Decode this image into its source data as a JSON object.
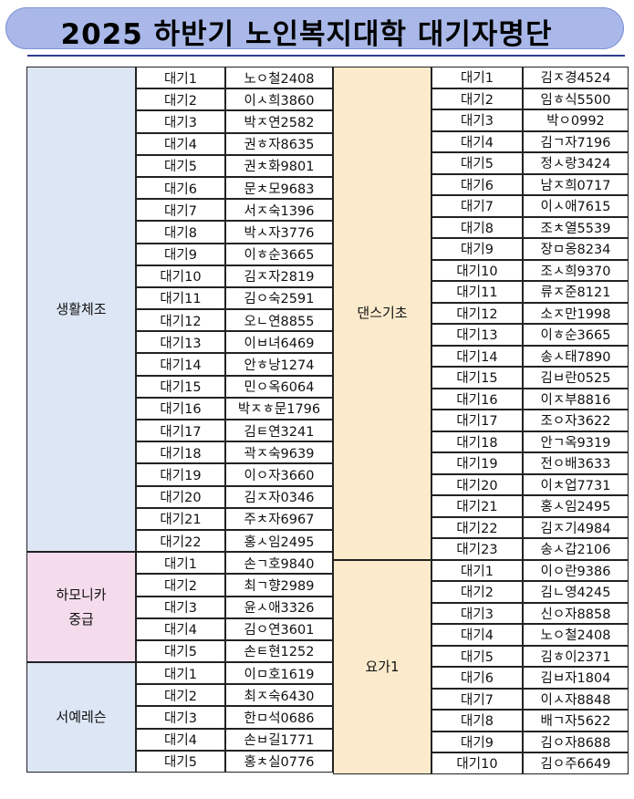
{
  "title": "2025 하반기 노인복지대학 대기자명단",
  "colors": {
    "title_bg": "#a9b8e8",
    "생활체조": "#dde6f5",
    "하모니카": "#f4dced",
    "서예레슨": "#dde6f5",
    "댄스기초": "#fbebcc",
    "요가1": "#fbebcc"
  },
  "left": [
    {
      "program": "생활체조",
      "color": "#dde6f5",
      "rows": [
        [
          "대기1",
          "노ㅇ철2408"
        ],
        [
          "대기2",
          "이ㅅ희3860"
        ],
        [
          "대기3",
          "박ㅈ연2582"
        ],
        [
          "대기4",
          "권ㅎ자8635"
        ],
        [
          "대기5",
          "권ㅊ화9801"
        ],
        [
          "대기6",
          "문ㅊ모9683"
        ],
        [
          "대기7",
          "서ㅈ숙1396"
        ],
        [
          "대기8",
          "박ㅅ자3776"
        ],
        [
          "대기9",
          "이ㅎ순3665"
        ],
        [
          "대기10",
          "김ㅈ자2819"
        ],
        [
          "대기11",
          "김ㅇ숙2591"
        ],
        [
          "대기12",
          "오ㄴ연8855"
        ],
        [
          "대기13",
          "이ㅂ녀6469"
        ],
        [
          "대기14",
          "안ㅎ낭1274"
        ],
        [
          "대기15",
          "민ㅇ옥6064"
        ],
        [
          "대기16",
          "박ㅈㅎ문1796"
        ],
        [
          "대기17",
          "김ㅌ연3241"
        ],
        [
          "대기18",
          "곽ㅈ숙9639"
        ],
        [
          "대기19",
          "이ㅇ자3660"
        ],
        [
          "대기20",
          "김ㅈ자0346"
        ],
        [
          "대기21",
          "주ㅊ자6967"
        ],
        [
          "대기22",
          "홍ㅅ임2495"
        ]
      ]
    },
    {
      "program": "하모니카\n중급",
      "color": "#f4dced",
      "rows": [
        [
          "대기1",
          "손ㄱ호9840"
        ],
        [
          "대기2",
          "최ㄱ향2989"
        ],
        [
          "대기3",
          "윤ㅅ애3326"
        ],
        [
          "대기4",
          "김ㅇ연3601"
        ],
        [
          "대기5",
          "손ㅌ현1252"
        ]
      ]
    },
    {
      "program": "서예레슨",
      "color": "#dde6f5",
      "rows": [
        [
          "대기1",
          "이ㅁ호1619"
        ],
        [
          "대기2",
          "최ㅈ숙6430"
        ],
        [
          "대기3",
          "한ㅁ석0686"
        ],
        [
          "대기4",
          "손ㅂ길1771"
        ],
        [
          "대기5",
          "홍ㅊ실0776"
        ]
      ]
    }
  ],
  "right": [
    {
      "program": "댄스기초",
      "color": "#fbebcc",
      "rows": [
        [
          "대기1",
          "김ㅈ경4524"
        ],
        [
          "대기2",
          "임ㅎ식5500"
        ],
        [
          "대기3",
          "박ㅇ0992"
        ],
        [
          "대기4",
          "김ㄱ자7196"
        ],
        [
          "대기5",
          "정ㅅ랑3424"
        ],
        [
          "대기6",
          "남ㅈ희0717"
        ],
        [
          "대기7",
          "이ㅅ애7615"
        ],
        [
          "대기8",
          "조ㅊ열5539"
        ],
        [
          "대기9",
          "장ㅁ옹8234"
        ],
        [
          "대기10",
          "조ㅅ희9370"
        ],
        [
          "대기11",
          "류ㅈ준8121"
        ],
        [
          "대기12",
          "소ㅈ만1998"
        ],
        [
          "대기13",
          "이ㅎ순3665"
        ],
        [
          "대기14",
          "송ㅅ태7890"
        ],
        [
          "대기15",
          "김ㅂ란0525"
        ],
        [
          "대기16",
          "이ㅈ부8816"
        ],
        [
          "대기17",
          "조ㅇ자3622"
        ],
        [
          "대기18",
          "안ㄱ옥9319"
        ],
        [
          "대기19",
          "전ㅇ배3633"
        ],
        [
          "대기20",
          "이ㅊ업7731"
        ],
        [
          "대기21",
          "홍ㅅ임2495"
        ],
        [
          "대기22",
          "김ㅈ기4984"
        ],
        [
          "대기23",
          "송ㅅ갑2106"
        ]
      ]
    },
    {
      "program": "요가1",
      "color": "#fbebcc",
      "rows": [
        [
          "대기1",
          "이ㅇ란9386"
        ],
        [
          "대기2",
          "김ㄴ영4245"
        ],
        [
          "대기3",
          "신ㅇ자8858"
        ],
        [
          "대기4",
          "노ㅇ철2408"
        ],
        [
          "대기5",
          "김ㅎ이2371"
        ],
        [
          "대기6",
          "김ㅂ자1804"
        ],
        [
          "대기7",
          "이ㅅ자8848"
        ],
        [
          "대기8",
          "배ㄱ자5622"
        ],
        [
          "대기9",
          "김ㅇ자8688"
        ],
        [
          "대기10",
          "김ㅇ주6649"
        ]
      ]
    }
  ]
}
